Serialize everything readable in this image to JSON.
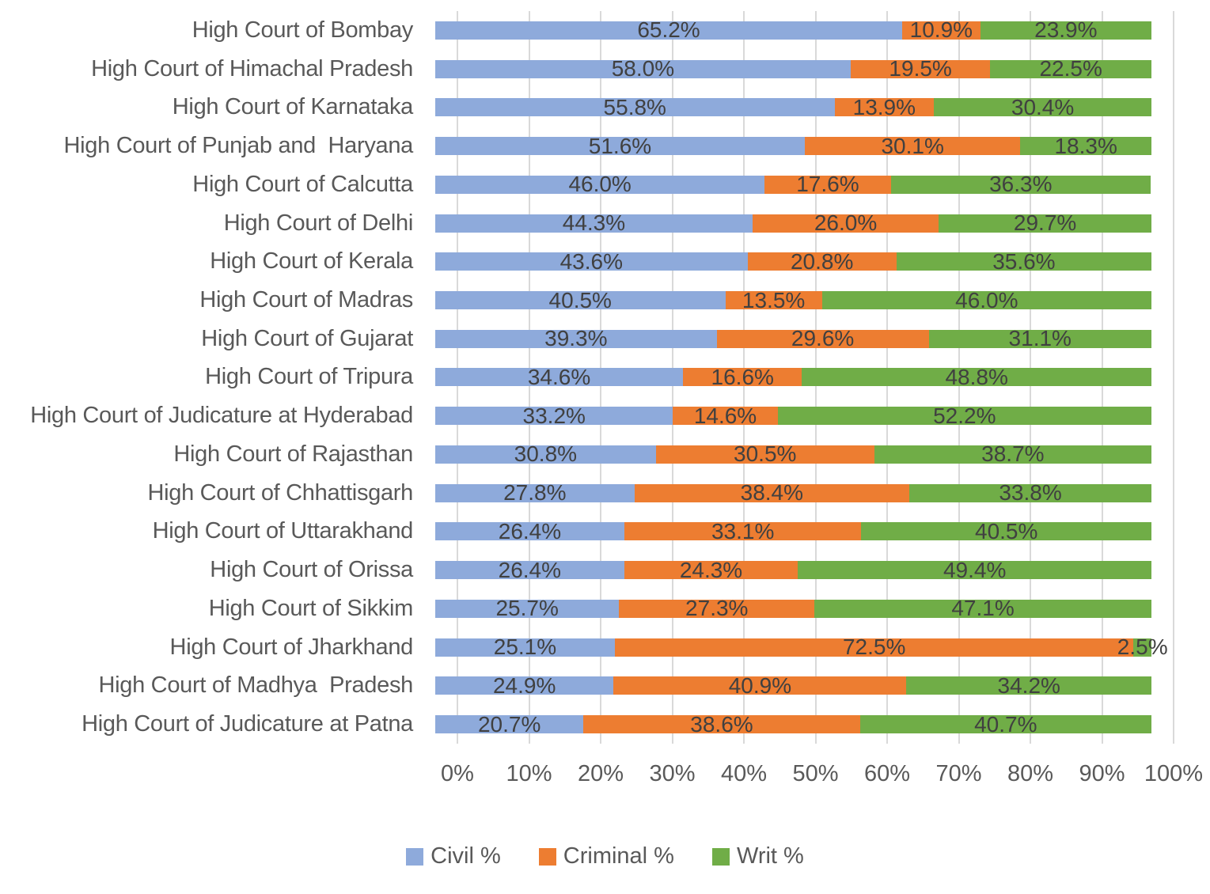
{
  "chart_data": {
    "type": "bar",
    "orientation": "horizontal-stacked",
    "title": "",
    "xlabel": "",
    "ylabel": "",
    "x_axis": {
      "min": 0,
      "max": 100,
      "tick_step": 10,
      "tick_labels": [
        "0%",
        "10%",
        "20%",
        "30%",
        "40%",
        "50%",
        "60%",
        "70%",
        "80%",
        "90%",
        "100%"
      ]
    },
    "grid": true,
    "categories": [
      "High Court of Bombay",
      "High Court of Himachal Pradesh",
      "High Court of Karnataka",
      "High Court of Punjab and  Haryana",
      "High Court of Calcutta",
      "High Court of Delhi",
      "High Court of Kerala",
      "High Court of Madras",
      "High Court of Gujarat",
      "High Court of Tripura",
      "High Court of Judicature at Hyderabad",
      "High Court of Rajasthan",
      "High Court of Chhattisgarh",
      "High Court of Uttarakhand",
      "High Court of Orissa",
      "High Court of Sikkim",
      "High Court of Jharkhand",
      "High Court of Madhya  Pradesh",
      "High Court of Judicature at Patna"
    ],
    "series": [
      {
        "name": "Civil %",
        "color": "#8EAADB",
        "values": [
          65.2,
          58.0,
          55.8,
          51.6,
          46.0,
          44.3,
          43.6,
          40.5,
          39.3,
          34.6,
          33.2,
          30.8,
          27.8,
          26.4,
          26.4,
          25.7,
          25.1,
          24.9,
          20.7
        ]
      },
      {
        "name": "Criminal %",
        "color": "#ED7D31",
        "values": [
          10.9,
          19.5,
          13.9,
          30.1,
          17.6,
          26.0,
          20.8,
          13.5,
          29.6,
          16.6,
          14.6,
          30.5,
          38.4,
          33.1,
          24.3,
          27.3,
          72.5,
          40.9,
          38.6
        ]
      },
      {
        "name": "Writ %",
        "color": "#70AD47",
        "values": [
          23.9,
          22.5,
          30.4,
          18.3,
          36.3,
          29.7,
          35.6,
          46.0,
          31.1,
          48.8,
          52.2,
          38.7,
          33.8,
          40.5,
          49.4,
          47.1,
          2.5,
          34.2,
          40.7
        ]
      }
    ],
    "value_label_suffix": "%",
    "legend": {
      "position": "bottom",
      "items": [
        "Civil %",
        "Criminal %",
        "Writ %"
      ]
    }
  },
  "colors": {
    "gridline": "#D9D9D9",
    "data_label": "#404040",
    "axis_label": "#595959"
  }
}
